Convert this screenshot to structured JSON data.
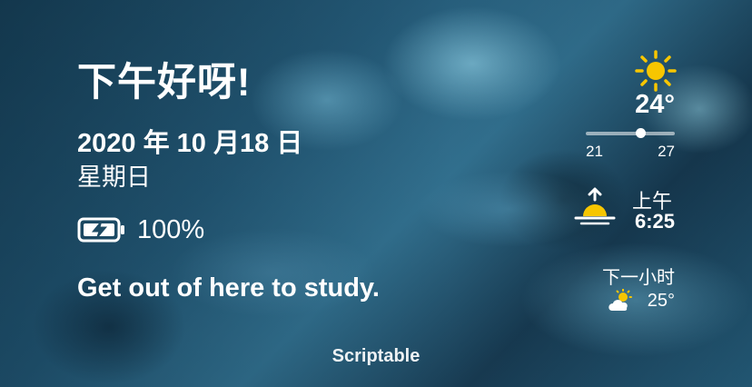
{
  "widget": {
    "greeting": "下午好呀!",
    "date": "2020 年 10 月18 日",
    "weekday": "星期日",
    "battery_percent": "100%",
    "quote": "Get out of here to study.",
    "source_label": "Scriptable"
  },
  "weather": {
    "condition_icon": "sun-icon",
    "current_temp": "24°",
    "low": "21",
    "high": "27",
    "sunrise_period": "上午",
    "sunrise_time": "6:25",
    "next_hour_label": "下一小时",
    "next_hour_icon": "partly-cloudy-icon",
    "next_hour_temp": "25°"
  },
  "colors": {
    "sun": "#f7c600",
    "text": "#ffffff"
  }
}
